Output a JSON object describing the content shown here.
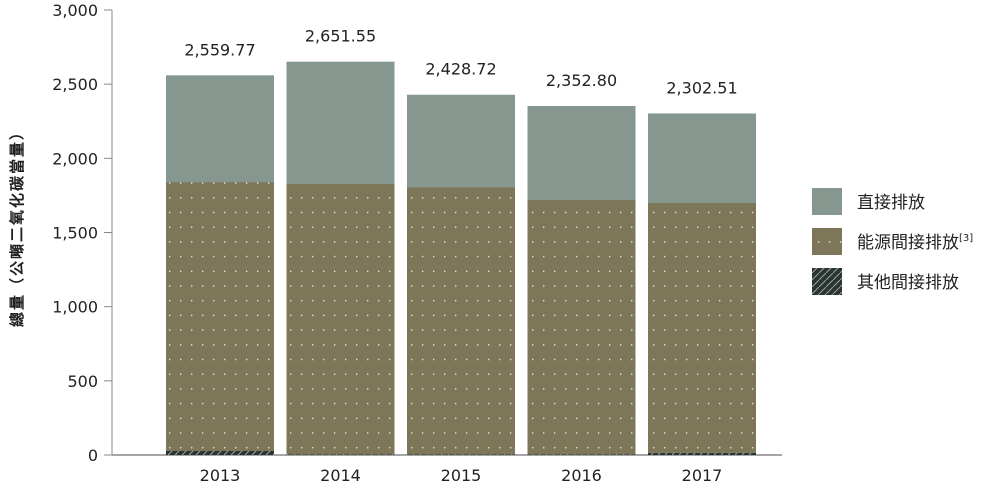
{
  "chart_data": {
    "type": "bar",
    "stacked": true,
    "title": "",
    "xlabel": "",
    "ylabel": "總量（公噸二氧化碳當量）",
    "ylim": [
      0,
      3000
    ],
    "yticks": [
      0,
      500,
      1000,
      1500,
      2000,
      2500,
      3000
    ],
    "ytick_labels": [
      "0",
      "500",
      "1,000",
      "1,500",
      "2,000",
      "2,500",
      "3,000"
    ],
    "categories": [
      "2013",
      "2014",
      "2015",
      "2016",
      "2017"
    ],
    "totals": [
      2559.77,
      2651.55,
      2428.72,
      2352.8,
      2302.51
    ],
    "total_labels": [
      "2,559.77",
      "2,651.55",
      "2,428.72",
      "2,352.80",
      "2,302.51"
    ],
    "series": [
      {
        "name": "其他間接排放",
        "values": [
          27,
          5,
          5,
          5,
          14
        ],
        "color": "#2a3430",
        "pattern": "hatch"
      },
      {
        "name": "能源間接排放",
        "superscript": "[3]",
        "values": [
          1813,
          1822,
          1801,
          1714,
          1685
        ],
        "color": "#7d7658",
        "pattern": "dots"
      },
      {
        "name": "直接排放",
        "values": [
          719.77,
          824.55,
          622.72,
          633.8,
          603.51
        ],
        "color": "#85978f",
        "pattern": "solid"
      }
    ],
    "legend_order": [
      2,
      1,
      0
    ],
    "legend_position": "right",
    "grid": false
  }
}
